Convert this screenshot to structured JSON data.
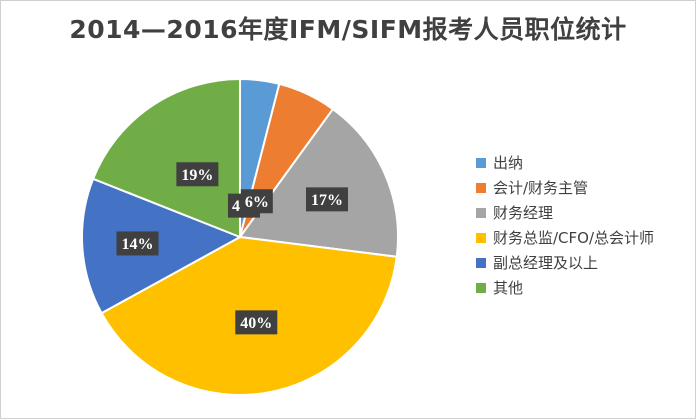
{
  "chart_data": {
    "type": "pie",
    "title": "2014—2016年度IFM/SIFM报考人员职位统计",
    "categories": [
      "出纳",
      "会计/财务主管",
      "财务经理",
      "财务总监/CFO/总会计师",
      "副总经理及以上",
      "其他"
    ],
    "values": [
      4,
      6,
      17,
      40,
      14,
      19
    ],
    "data_labels": [
      "4%",
      "6%",
      "17%",
      "40%",
      "14%",
      "19%"
    ],
    "colors": [
      "#5B9BD5",
      "#ED7D31",
      "#A5A5A5",
      "#FFC000",
      "#4472C4",
      "#70AD47"
    ],
    "legend_position": "right",
    "start_angle": "12 o'clock, clockwise"
  }
}
